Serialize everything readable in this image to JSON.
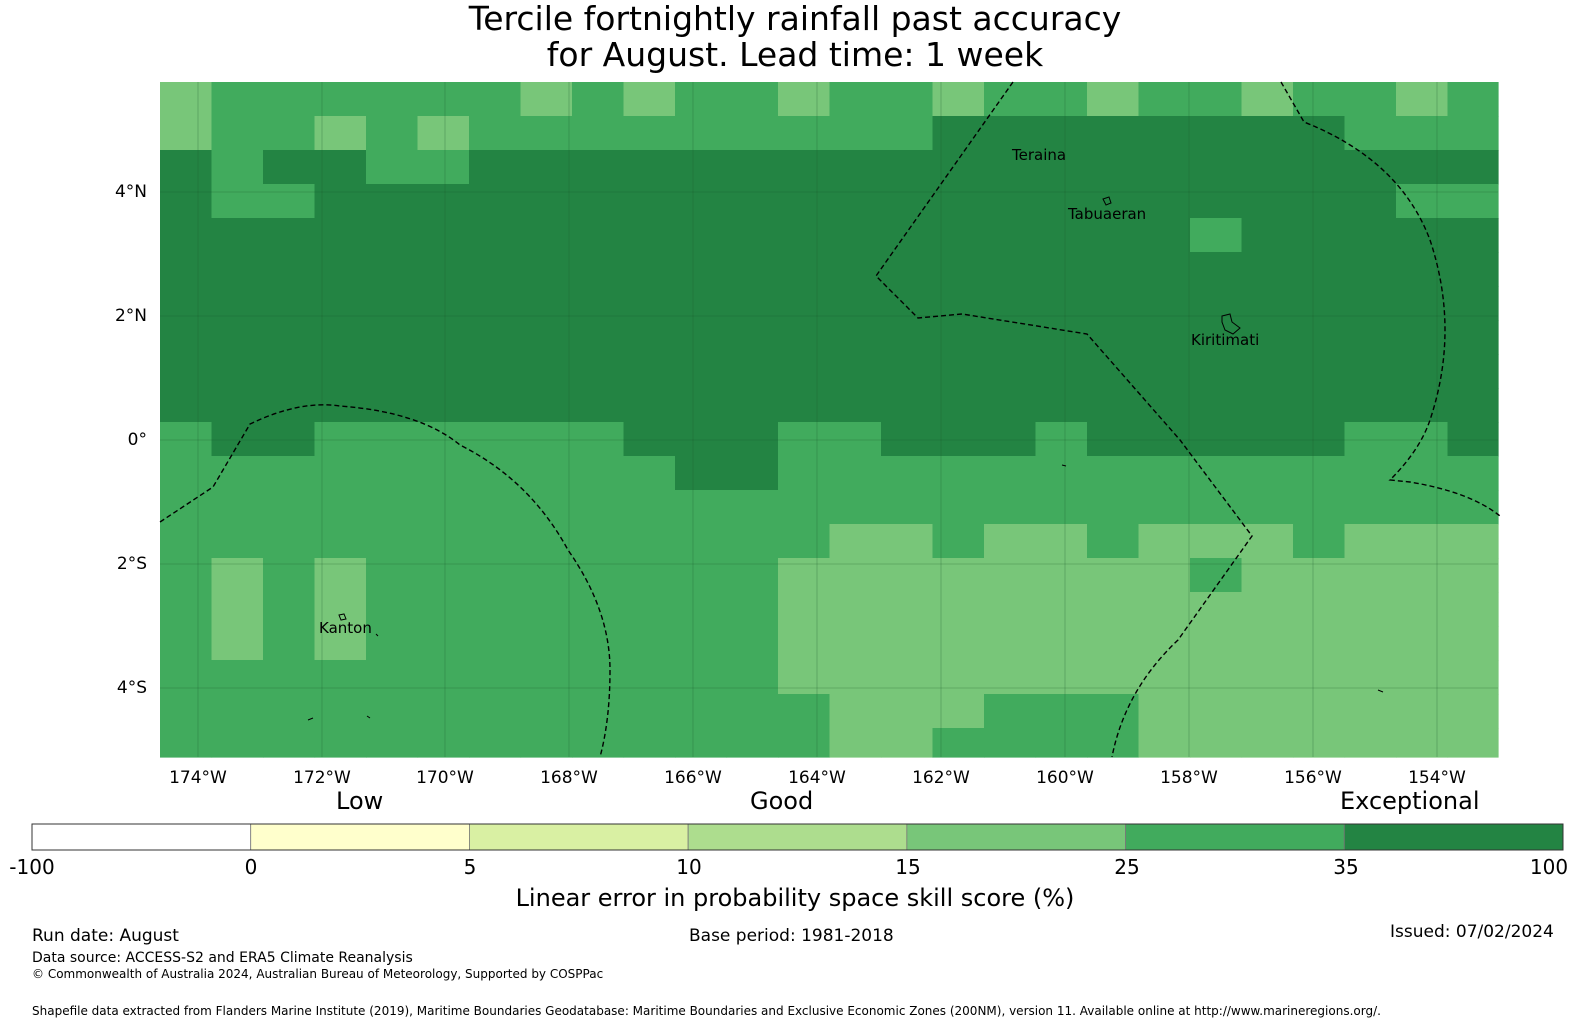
{
  "title_line1": "Tercile fortnightly rainfall past accuracy",
  "title_line2": "for August. Lead time: 1 week",
  "map": {
    "lon_ticks": [
      "174°W",
      "172°W",
      "170°W",
      "168°W",
      "166°W",
      "164°W",
      "162°W",
      "160°W",
      "158°W",
      "156°W",
      "154°W"
    ],
    "lat_ticks": [
      "4°N",
      "2°N",
      "0°",
      "2°S",
      "4°S"
    ],
    "places": [
      {
        "name": "Teraina"
      },
      {
        "name": "Tabuaeran"
      },
      {
        "name": "Kiritimati"
      },
      {
        "name": "Kanton"
      }
    ],
    "colors": {
      "exceptional_dark": "#238443",
      "good_high": "#41ab5d",
      "good_mid": "#78c679",
      "good_low": "#addd8e"
    }
  },
  "legend": {
    "categories": [
      "Low",
      "Good",
      "Exceptional"
    ],
    "bin_colors": [
      "#ffffff",
      "#ffffcc",
      "#d9f0a3",
      "#addd8e",
      "#78c679",
      "#41ab5d",
      "#238443"
    ],
    "tick_labels": [
      "-100",
      "0",
      "5",
      "10",
      "15",
      "25",
      "35",
      "100"
    ],
    "title": "Linear error in probability space skill score (%)"
  },
  "footer": {
    "run_date": "Run date: August",
    "base_period": "Base period: 1981-2018",
    "issued": "Issued: 07/02/2024",
    "data_source": "Data source: ACCESS-S2 and ERA5 Climate Reanalysis",
    "copyright": "© Commonwealth of Australia 2024, Australian Bureau of Meteorology, Supported by COSPPac",
    "shapefile": "Shapefile data extracted from Flanders Marine Institute (2019), Maritime Boundaries Geodatabase: Maritime Boundaries and Exclusive Economic Zones (200NM), version 11. Available online at http://www.marineregions.org/."
  }
}
